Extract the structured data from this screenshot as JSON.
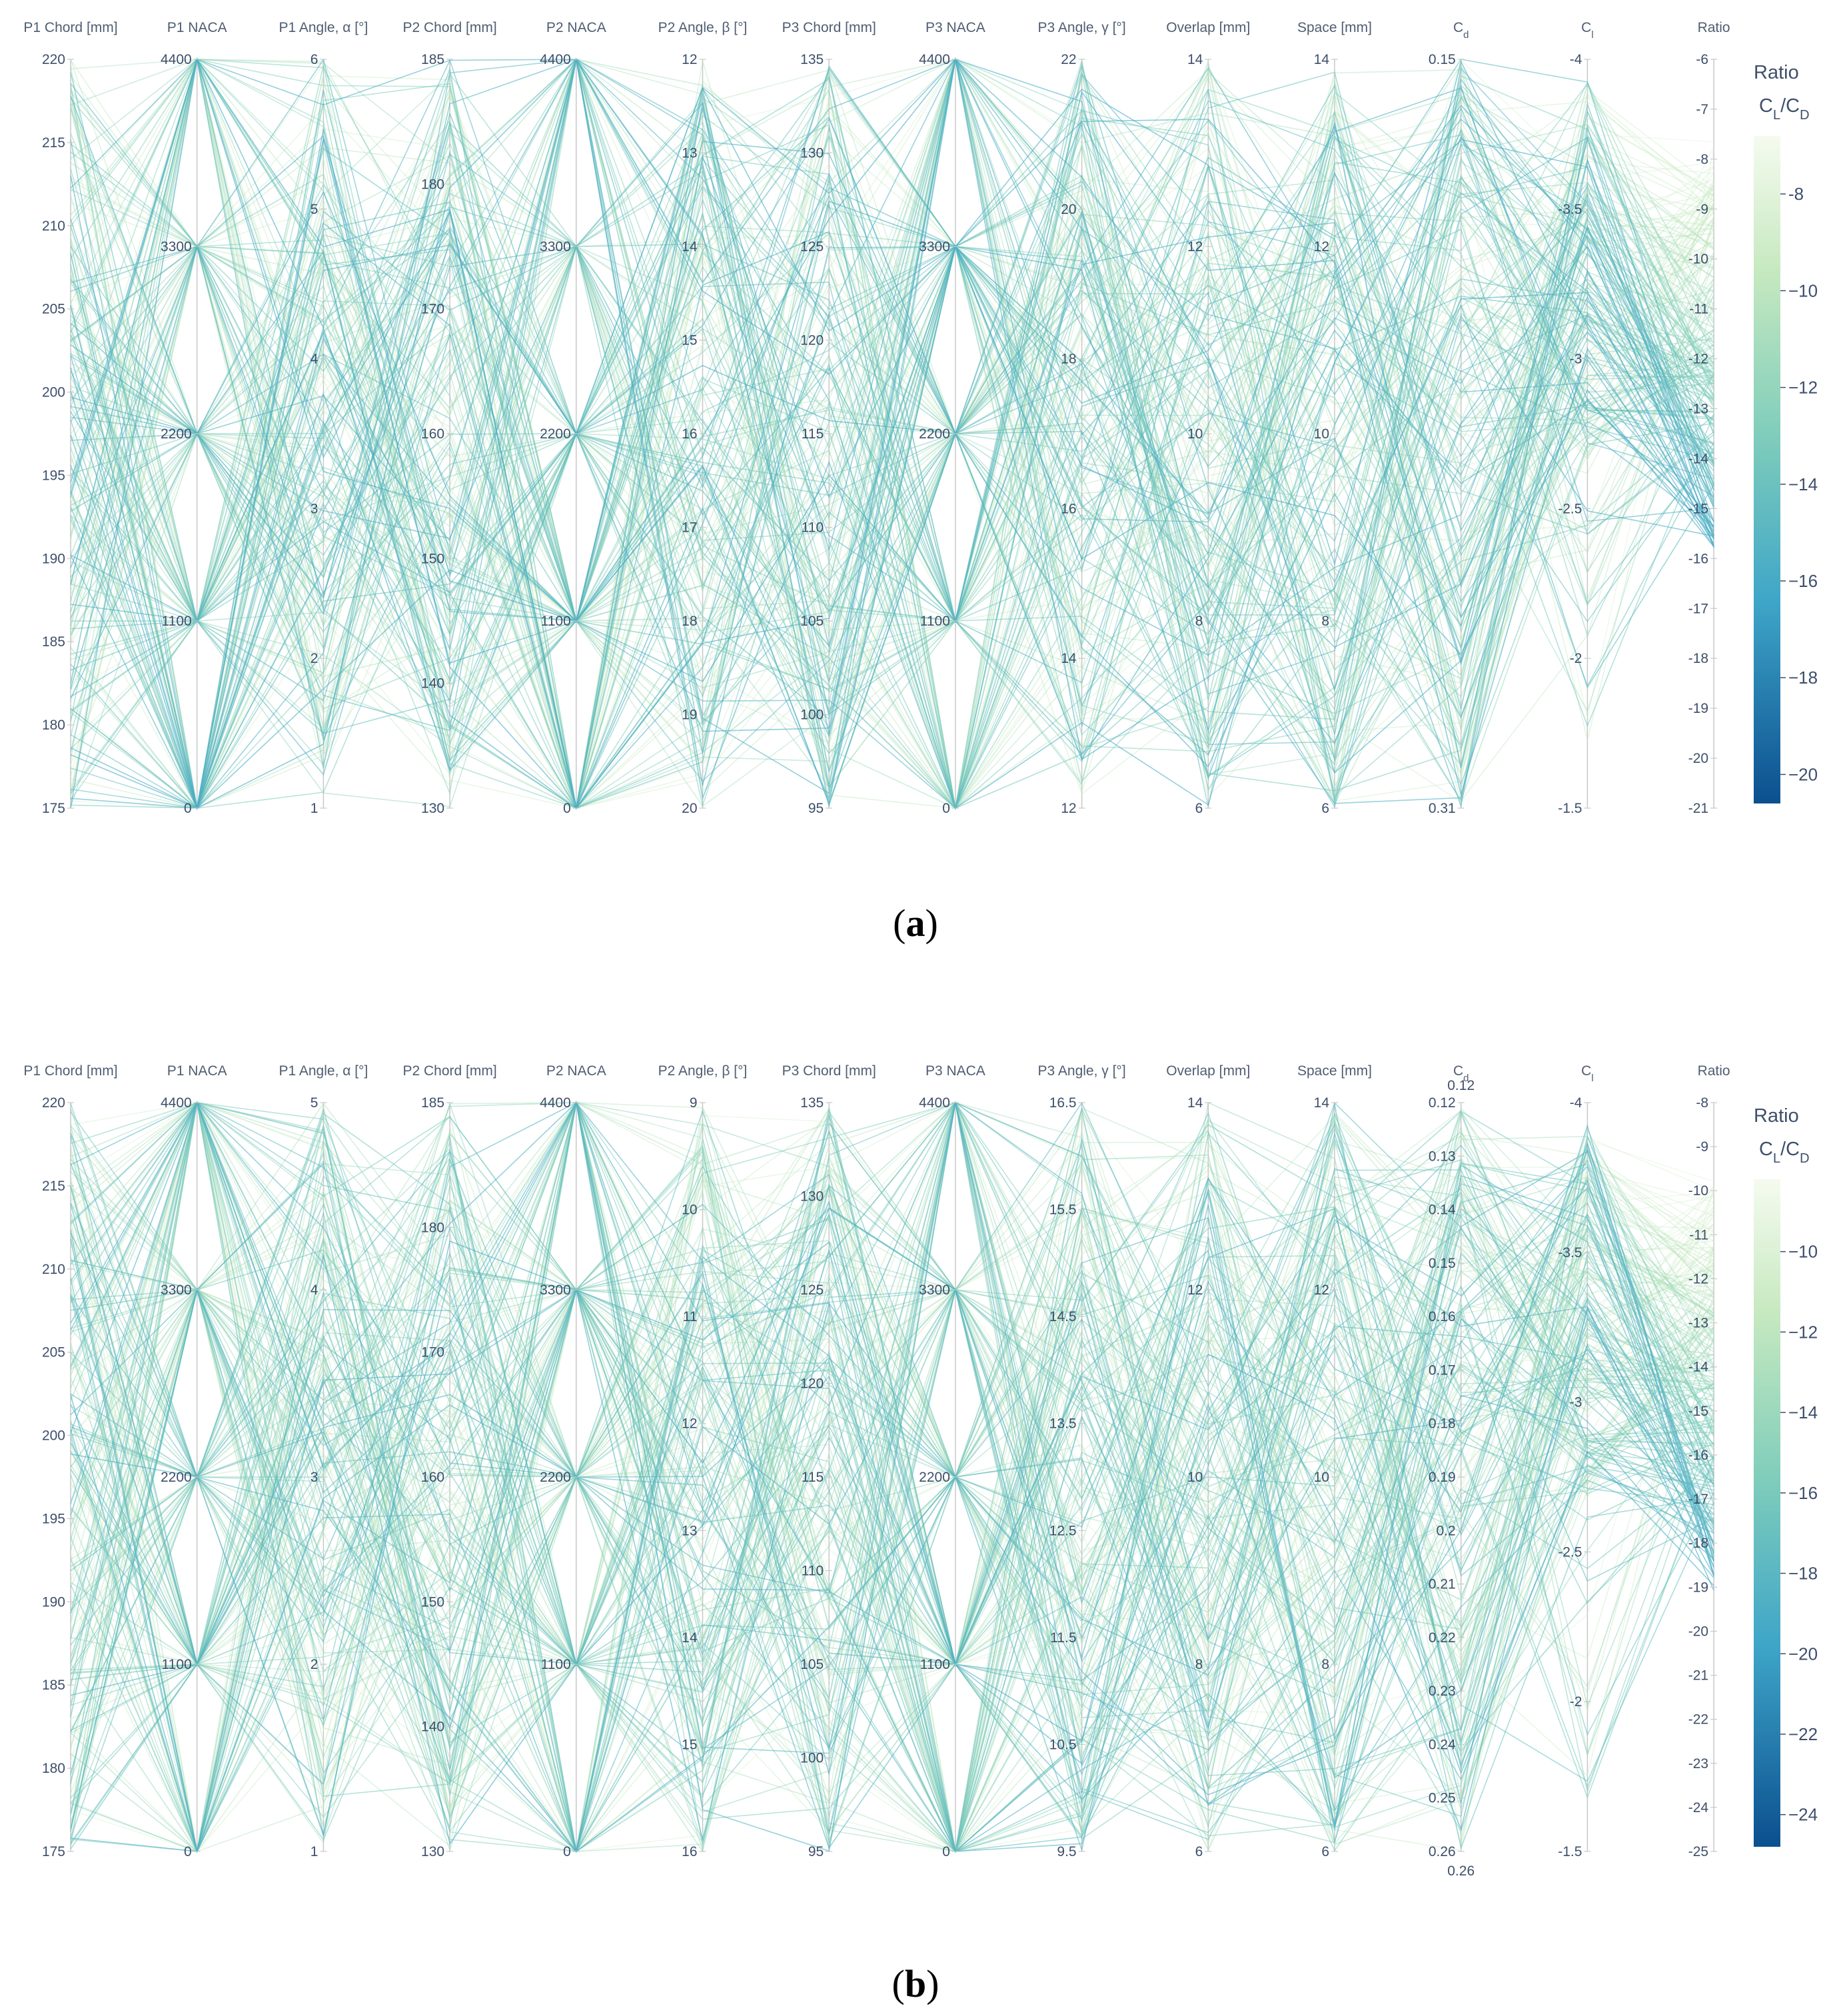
{
  "chart_data": [
    {
      "type": "parallel_coordinates",
      "panel": "a",
      "caption_letter": "a",
      "axes": [
        {
          "id": "p1_chord",
          "label": "P1 Chord [mm]",
          "range": [
            175,
            220
          ],
          "ticks": [
            "220",
            "215",
            "210",
            "205",
            "200",
            "195",
            "190",
            "185",
            "180",
            "175"
          ]
        },
        {
          "id": "p1_naca",
          "label": "P1 NACA",
          "range": [
            0,
            4400
          ],
          "ticks": [
            "4400",
            "3300",
            "2200",
            "1100",
            "0"
          ]
        },
        {
          "id": "p1_angle",
          "label": "P1 Angle, α [°]",
          "range": [
            1,
            6
          ],
          "ticks": [
            "6",
            "5",
            "4",
            "3",
            "2",
            "1"
          ]
        },
        {
          "id": "p2_chord",
          "label": "P2 Chord [mm]",
          "range": [
            130,
            185
          ],
          "ticks": [
            "185",
            "180",
            "170",
            "160",
            "150",
            "140",
            "130"
          ]
        },
        {
          "id": "p2_naca",
          "label": "P2 NACA",
          "range": [
            0,
            4400
          ],
          "ticks": [
            "4400",
            "3300",
            "2200",
            "1100",
            "0"
          ]
        },
        {
          "id": "p2_angle",
          "label": "P2 Angle, β [°]",
          "range": [
            20,
            12
          ],
          "ticks": [
            "12",
            "13",
            "14",
            "15",
            "16",
            "17",
            "18",
            "19",
            "20"
          ]
        },
        {
          "id": "p3_chord",
          "label": "P3 Chord [mm]",
          "range": [
            95,
            135
          ],
          "ticks": [
            "135",
            "130",
            "125",
            "120",
            "115",
            "110",
            "105",
            "100",
            "95"
          ]
        },
        {
          "id": "p3_naca",
          "label": "P3 NACA",
          "range": [
            0,
            4400
          ],
          "ticks": [
            "4400",
            "3300",
            "2200",
            "1100",
            "0"
          ]
        },
        {
          "id": "p3_angle",
          "label": "P3 Angle, γ [°]",
          "range": [
            12,
            22
          ],
          "ticks": [
            "22",
            "20",
            "18",
            "16",
            "14",
            "12"
          ]
        },
        {
          "id": "overlap",
          "label": "Overlap [mm]",
          "range": [
            6,
            14
          ],
          "ticks": [
            "14",
            "12",
            "10",
            "8",
            "6"
          ]
        },
        {
          "id": "space",
          "label": "Space [mm]",
          "range": [
            6,
            14
          ],
          "ticks": [
            "14",
            "12",
            "10",
            "8",
            "6"
          ]
        },
        {
          "id": "cd",
          "label": "C",
          "label_sub": "d",
          "range": [
            0.31,
            0.15
          ],
          "ticks": [
            "0.15",
            "0.31"
          ]
        },
        {
          "id": "cl",
          "label": "C",
          "label_sub": "l",
          "range": [
            -1.5,
            -4
          ],
          "ticks": [
            "-4",
            "-3.5",
            "-3",
            "-2.5",
            "-2",
            "-1.5"
          ]
        },
        {
          "id": "ratio",
          "label": "Ratio",
          "range": [
            -21,
            -6
          ],
          "ticks": [
            "-6",
            "-7",
            "-8",
            "-9",
            "-10",
            "-11",
            "-12",
            "-13",
            "-14",
            "-15",
            "-16",
            "-17",
            "-18",
            "-19",
            "-20",
            "-21"
          ]
        }
      ],
      "colorbar": {
        "title": "Ratio",
        "subtitle_main": "C",
        "subtitle_sub1": "L",
        "subtitle_sep": "/C",
        "subtitle_sub2": "D",
        "range": [
          -20.6,
          -6.8
        ],
        "ticks": [
          "-8",
          "−10",
          "−12",
          "−14",
          "−16",
          "−18",
          "−20"
        ],
        "tick_values": [
          -8,
          -10,
          -12,
          -14,
          -16,
          -18,
          -20
        ]
      },
      "n_lines": 220,
      "seed": 1234
    },
    {
      "type": "parallel_coordinates",
      "panel": "b",
      "caption_letter": "b",
      "axes": [
        {
          "id": "p1_chord",
          "label": "P1 Chord [mm]",
          "range": [
            175,
            220
          ],
          "ticks": [
            "220",
            "215",
            "210",
            "205",
            "200",
            "195",
            "190",
            "185",
            "180",
            "175"
          ]
        },
        {
          "id": "p1_naca",
          "label": "P1 NACA",
          "range": [
            0,
            4400
          ],
          "ticks": [
            "4400",
            "3300",
            "2200",
            "1100",
            "0"
          ]
        },
        {
          "id": "p1_angle",
          "label": "P1 Angle, α [°]",
          "range": [
            1,
            5
          ],
          "ticks": [
            "5",
            "4",
            "3",
            "2",
            "1"
          ]
        },
        {
          "id": "p2_chord",
          "label": "P2 Chord [mm]",
          "range": [
            130,
            185
          ],
          "ticks": [
            "185",
            "180",
            "170",
            "160",
            "150",
            "140",
            "130"
          ]
        },
        {
          "id": "p2_naca",
          "label": "P2 NACA",
          "range": [
            0,
            4400
          ],
          "ticks": [
            "4400",
            "3300",
            "2200",
            "1100",
            "0"
          ]
        },
        {
          "id": "p2_angle",
          "label": "P2 Angle, β [°]",
          "range": [
            16,
            9
          ],
          "ticks": [
            "9",
            "10",
            "11",
            "12",
            "13",
            "14",
            "15",
            "16"
          ]
        },
        {
          "id": "p3_chord",
          "label": "P3 Chord [mm]",
          "range": [
            95,
            135
          ],
          "ticks": [
            "135",
            "130",
            "125",
            "120",
            "115",
            "110",
            "105",
            "100",
            "95"
          ]
        },
        {
          "id": "p3_naca",
          "label": "P3 NACA",
          "range": [
            0,
            4400
          ],
          "ticks": [
            "4400",
            "3300",
            "2200",
            "1100",
            "0"
          ]
        },
        {
          "id": "p3_angle",
          "label": "P3 Angle, γ [°]",
          "range": [
            9.5,
            16.5
          ],
          "ticks": [
            "16.5",
            "15.5",
            "14.5",
            "13.5",
            "12.5",
            "11.5",
            "10.5",
            "9.5"
          ]
        },
        {
          "id": "overlap",
          "label": "Overlap [mm]",
          "range": [
            6,
            14
          ],
          "ticks": [
            "14",
            "12",
            "10",
            "8",
            "6"
          ]
        },
        {
          "id": "space",
          "label": "Space [mm]",
          "range": [
            6,
            14
          ],
          "ticks": [
            "14",
            "12",
            "10",
            "8",
            "6"
          ]
        },
        {
          "id": "cd",
          "label": "C",
          "label_sub": "d",
          "range": [
            0.26,
            0.12
          ],
          "ticks": [
            "0.12",
            "0.13",
            "0.14",
            "0.15",
            "0.16",
            "0.17",
            "0.18",
            "0.19",
            "0.2",
            "0.21",
            "0.22",
            "0.23",
            "0.24",
            "0.25",
            "0.26"
          ],
          "extra_top": "0.12",
          "extra_bottom": "0.26"
        },
        {
          "id": "cl",
          "label": "C",
          "label_sub": "l",
          "range": [
            -1.5,
            -4
          ],
          "ticks": [
            "-4",
            "-3.5",
            "-3",
            "-2.5",
            "-2",
            "-1.5"
          ]
        },
        {
          "id": "ratio",
          "label": "Ratio",
          "range": [
            -25,
            -8
          ],
          "ticks": [
            "-8",
            "-9",
            "-10",
            "-11",
            "-12",
            "-13",
            "-14",
            "-15",
            "-16",
            "-17",
            "-18",
            "-19",
            "-20",
            "-21",
            "-22",
            "-23",
            "-24",
            "-25"
          ]
        }
      ],
      "colorbar": {
        "title": "Ratio",
        "subtitle_main": "C",
        "subtitle_sub1": "L",
        "subtitle_sep": "/C",
        "subtitle_sub2": "D",
        "range": [
          -24.8,
          -8.2
        ],
        "ticks": [
          "−10",
          "−12",
          "−14",
          "−16",
          "−18",
          "−20",
          "−22",
          "−24"
        ],
        "tick_values": [
          -10,
          -12,
          -14,
          -16,
          -18,
          -20,
          -22,
          -24
        ]
      },
      "n_lines": 230,
      "seed": 98765
    }
  ],
  "colors": {
    "low": "#0b4f8f",
    "mid_low": "#3ea5c8",
    "mid": "#7fcdbb",
    "mid_high": "#c7e9c0",
    "high": "#f5fbef",
    "axis": "#c8c8c8"
  }
}
